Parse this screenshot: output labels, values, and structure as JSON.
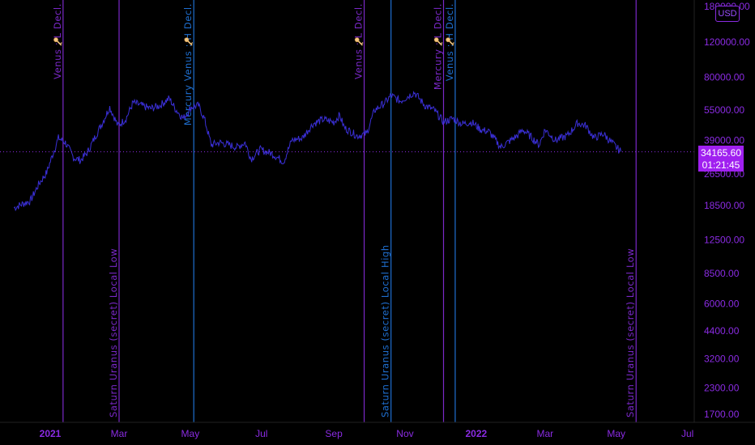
{
  "currency_badge": "USD",
  "last_price": "34165.60",
  "countdown": "01:21:45",
  "chart_data": {
    "type": "line",
    "scale": "log",
    "ylim": [
      1700,
      180000
    ],
    "y_ticks": [
      1700,
      2300,
      3200,
      4400,
      6000,
      8500,
      12500,
      18500,
      26500,
      39000,
      55000,
      80000,
      120000,
      180000
    ],
    "y_tick_labels": [
      "1700.00",
      "2300.00",
      "3200.00",
      "4400.00",
      "6000.00",
      "8500.00",
      "12500.00",
      "18500.00",
      "26500.00",
      "39000.00",
      "55000.00",
      "80000.00",
      "120000.00",
      "180000.00"
    ],
    "x_ticks": [
      {
        "label": "2021",
        "date": "2021-01-01",
        "bold": true
      },
      {
        "label": "Mar",
        "date": "2021-03-01",
        "bold": false
      },
      {
        "label": "May",
        "date": "2021-05-01",
        "bold": false
      },
      {
        "label": "Jul",
        "date": "2021-07-01",
        "bold": false
      },
      {
        "label": "Sep",
        "date": "2021-09-01",
        "bold": false
      },
      {
        "label": "Nov",
        "date": "2021-11-01",
        "bold": false
      },
      {
        "label": "2022",
        "date": "2022-01-01",
        "bold": true
      },
      {
        "label": "Mar",
        "date": "2022-03-01",
        "bold": false
      },
      {
        "label": "May",
        "date": "2022-05-01",
        "bold": false
      },
      {
        "label": "Jul",
        "date": "2022-07-01",
        "bold": false
      }
    ],
    "series": [
      {
        "color": "#3a2fd6",
        "points": [
          [
            "2020-12-01",
            18000
          ],
          [
            "2020-12-08",
            18800
          ],
          [
            "2020-12-15",
            19500
          ],
          [
            "2020-12-22",
            23500
          ],
          [
            "2020-12-29",
            27000
          ],
          [
            "2021-01-03",
            33000
          ],
          [
            "2021-01-08",
            40000
          ],
          [
            "2021-01-14",
            38000
          ],
          [
            "2021-01-21",
            32000
          ],
          [
            "2021-01-27",
            31000
          ],
          [
            "2021-02-02",
            34000
          ],
          [
            "2021-02-08",
            40000
          ],
          [
            "2021-02-15",
            48000
          ],
          [
            "2021-02-21",
            57000
          ],
          [
            "2021-02-28",
            46000
          ],
          [
            "2021-03-07",
            50000
          ],
          [
            "2021-03-13",
            60000
          ],
          [
            "2021-03-20",
            58000
          ],
          [
            "2021-03-28",
            56000
          ],
          [
            "2021-04-05",
            58000
          ],
          [
            "2021-04-13",
            63000
          ],
          [
            "2021-04-18",
            56000
          ],
          [
            "2021-04-25",
            50000
          ],
          [
            "2021-05-02",
            57000
          ],
          [
            "2021-05-08",
            58000
          ],
          [
            "2021-05-13",
            50000
          ],
          [
            "2021-05-19",
            37000
          ],
          [
            "2021-05-26",
            38000
          ],
          [
            "2021-06-03",
            37000
          ],
          [
            "2021-06-10",
            36000
          ],
          [
            "2021-06-17",
            38000
          ],
          [
            "2021-06-22",
            31500
          ],
          [
            "2021-06-30",
            35000
          ],
          [
            "2021-07-10",
            33500
          ],
          [
            "2021-07-20",
            30500
          ],
          [
            "2021-07-27",
            39000
          ],
          [
            "2021-08-05",
            40000
          ],
          [
            "2021-08-14",
            47000
          ],
          [
            "2021-08-23",
            49500
          ],
          [
            "2021-09-01",
            48000
          ],
          [
            "2021-09-06",
            52000
          ],
          [
            "2021-09-10",
            45000
          ],
          [
            "2021-09-21",
            41000
          ],
          [
            "2021-09-29",
            42000
          ],
          [
            "2021-10-06",
            55000
          ],
          [
            "2021-10-15",
            60000
          ],
          [
            "2021-10-20",
            65000
          ],
          [
            "2021-10-28",
            61000
          ],
          [
            "2021-11-09",
            67500
          ],
          [
            "2021-11-18",
            58000
          ],
          [
            "2021-11-26",
            55000
          ],
          [
            "2021-12-04",
            48000
          ],
          [
            "2021-12-12",
            50000
          ],
          [
            "2021-12-20",
            47000
          ],
          [
            "2021-12-28",
            48000
          ],
          [
            "2022-01-05",
            44000
          ],
          [
            "2022-01-12",
            43000
          ],
          [
            "2022-01-22",
            36000
          ],
          [
            "2022-02-05",
            41000
          ],
          [
            "2022-02-10",
            44000
          ],
          [
            "2022-02-17",
            40500
          ],
          [
            "2022-02-24",
            37000
          ],
          [
            "2022-03-01",
            44000
          ],
          [
            "2022-03-10",
            39000
          ],
          [
            "2022-03-20",
            41000
          ],
          [
            "2022-03-29",
            47500
          ],
          [
            "2022-04-05",
            46000
          ],
          [
            "2022-04-12",
            40000
          ],
          [
            "2022-04-20",
            42000
          ],
          [
            "2022-04-26",
            38500
          ],
          [
            "2022-05-05",
            34165
          ]
        ]
      }
    ],
    "vlines": [
      {
        "date": "2021-01-12",
        "color": "#7a28c8",
        "label": "Venus : L    Decl.",
        "label_position": "top",
        "icon": "key"
      },
      {
        "date": "2021-02-29",
        "color": "#7a28c8",
        "label": "Saturn Uranus (secret) Local Low",
        "label_position": "bottom",
        "icon": ""
      },
      {
        "date": "2021-05-04",
        "color": "#1f6fd0",
        "label": "Mercury Venus : H    Decl.",
        "label_position": "top",
        "icon": "key"
      },
      {
        "date": "2021-09-27",
        "color": "#7a28c8",
        "label": "Venus : L    Decl.",
        "label_position": "top",
        "icon": "key"
      },
      {
        "date": "2021-10-20",
        "color": "#1f6fd0",
        "label": "Saturn Uranus (secret) Local High",
        "label_position": "bottom",
        "icon": ""
      },
      {
        "date": "2021-12-04",
        "color": "#7a28c8",
        "label": "Mercury : L    Decl.",
        "label_position": "top",
        "icon": "key"
      },
      {
        "date": "2021-12-14",
        "color": "#1f6fd0",
        "label": "Venus : H    Decl.",
        "label_position": "top",
        "icon": "key"
      },
      {
        "date": "2022-05-18",
        "color": "#7a28c8",
        "label": "Saturn Uranus (secret) Local Low",
        "label_position": "bottom",
        "icon": ""
      }
    ],
    "last_price_line": 34165.6
  }
}
